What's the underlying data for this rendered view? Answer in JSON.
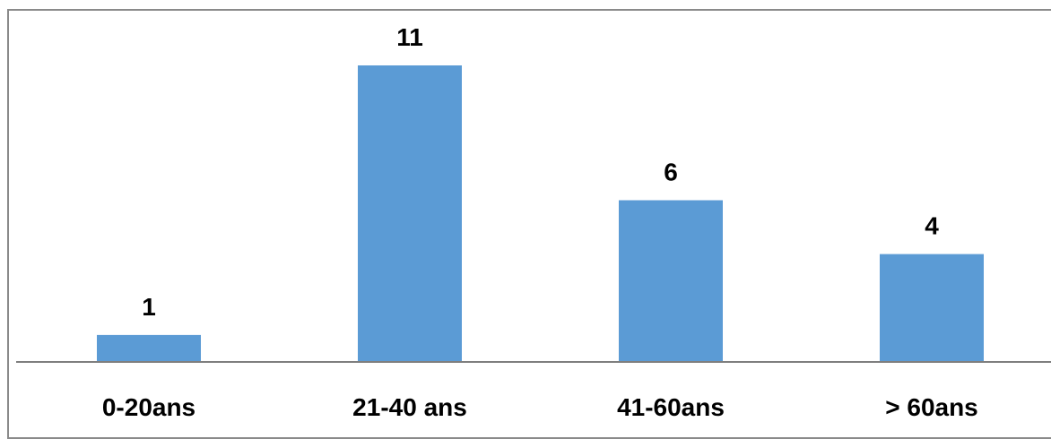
{
  "chart_data": {
    "type": "bar",
    "categories": [
      "0-20ans",
      "21-40 ans",
      "41-60ans",
      "> 60ans"
    ],
    "values": [
      1,
      11,
      6,
      4
    ],
    "data_labels": [
      "1",
      "11",
      "6",
      "4"
    ],
    "title": "",
    "xlabel": "",
    "ylabel": "",
    "ylim": [
      0,
      11
    ],
    "grid": false,
    "legend": "none",
    "bar_color": "#5b9bd5"
  }
}
